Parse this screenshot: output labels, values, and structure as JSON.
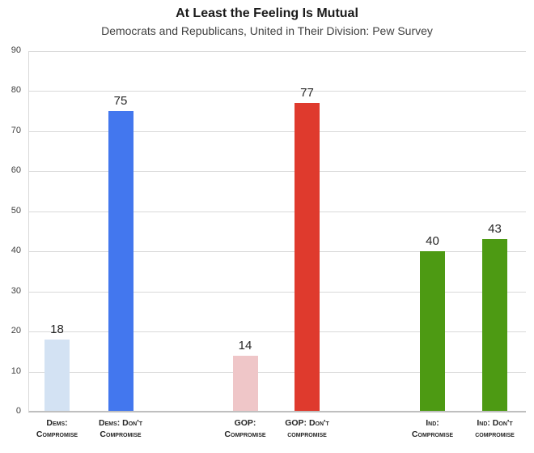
{
  "chart_data": {
    "type": "bar",
    "title": "At Least the Feeling Is Mutual",
    "subtitle": "Democrats and Republicans, United in Their Division: Pew Survey",
    "ylim": [
      0,
      90
    ],
    "yticks": [
      0,
      10,
      20,
      30,
      40,
      50,
      60,
      70,
      80,
      90
    ],
    "grid": true,
    "legend": "none",
    "bars": [
      {
        "label_line1": "Dems:",
        "label_line2": "Compromise",
        "value": 18,
        "color": "#d3e2f3"
      },
      {
        "label_line1": "Dems: Don't",
        "label_line2": "Compromise",
        "value": 75,
        "color": "#4377ee"
      },
      {
        "label_line1": "GOP:",
        "label_line2": "Compromise",
        "value": 14,
        "color": "#efc6c8"
      },
      {
        "label_line1": "GOP: Don't",
        "label_line2": "compromise",
        "value": 77,
        "color": "#df3a2d"
      },
      {
        "label_line1": "Ind:",
        "label_line2": "Compromise",
        "value": 40,
        "color": "#4d9a13"
      },
      {
        "label_line1": "Ind: Don't",
        "label_line2": "compromise",
        "value": 43,
        "color": "#4d9a13"
      }
    ]
  }
}
